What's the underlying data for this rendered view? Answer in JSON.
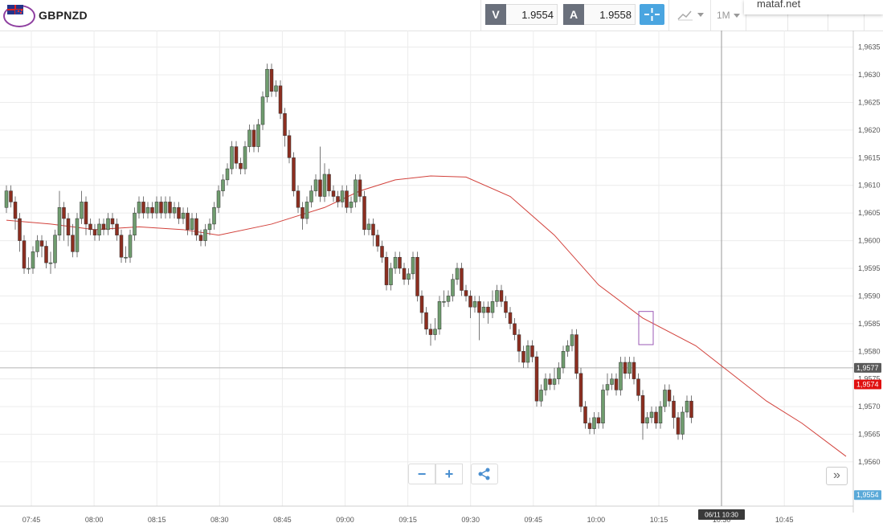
{
  "header": {
    "symbol": "GBPNZD",
    "sell_label": "V",
    "sell_price": "1.9554",
    "buy_label": "A",
    "buy_price": "1.9558",
    "timeframe": "1M",
    "overlay_text": "mataf.net"
  },
  "colors": {
    "bull": "#6f9c6e",
    "bear": "#8c2e20",
    "ma": "#d2413b",
    "price_tag": "#e01010",
    "bid_tag": "#5aa9d8",
    "crosshair_tag": "#5a5a5a",
    "accent": "#4aa5e0"
  },
  "chart_data": {
    "type": "candlestick",
    "y_range": [
      1.9552,
      1.9638
    ],
    "y_ticks": [
      "1,9560",
      "1,9565",
      "1,9570",
      "1,9575",
      "1,9580",
      "1,9585",
      "1,9590",
      "1,9595",
      "1,9600",
      "1,9605",
      "1,9610",
      "1,9615",
      "1,9620",
      "1,9625",
      "1,9630",
      "1,9635"
    ],
    "x_ticks": [
      "07:45",
      "08:00",
      "08:15",
      "08:30",
      "08:45",
      "09:00",
      "09:15",
      "09:30",
      "09:45",
      "10:00",
      "10:15",
      "10:30",
      "10:45"
    ],
    "crosshair": {
      "time": "06/11 10:30",
      "price": "1,9577"
    },
    "last_price_tag": "1,9574",
    "bid_tag": "1,9554",
    "moving_average": [
      [
        0,
        1.96037
      ],
      [
        10,
        1.9603
      ],
      [
        20,
        1.9602
      ],
      [
        30,
        1.96025
      ],
      [
        40,
        1.9602
      ],
      [
        48,
        1.9601
      ],
      [
        60,
        1.9603
      ],
      [
        72,
        1.9606
      ],
      [
        80,
        1.9609
      ],
      [
        88,
        1.9611
      ],
      [
        96,
        1.96117
      ],
      [
        104,
        1.96115
      ],
      [
        114,
        1.9608
      ],
      [
        124,
        1.9601
      ],
      [
        134,
        1.9592
      ],
      [
        144,
        1.9586
      ],
      [
        156,
        1.9581
      ],
      [
        164,
        1.9576
      ],
      [
        172,
        1.9571
      ],
      [
        180,
        1.9567
      ],
      [
        190,
        1.9561
      ]
    ],
    "candles": [
      [
        1.9606,
        1.9609,
        1.9605,
        1.961
      ],
      [
        1.9609,
        1.9607,
        1.9606,
        1.961
      ],
      [
        1.9607,
        1.9604,
        1.9602,
        1.9608
      ],
      [
        1.9604,
        1.96,
        1.9598,
        1.9605
      ],
      [
        1.96,
        1.9595,
        1.9594,
        1.9601
      ],
      [
        1.9595,
        1.9595,
        1.9594,
        1.9597
      ],
      [
        1.9595,
        1.9598,
        1.9594,
        1.9599
      ],
      [
        1.9598,
        1.96,
        1.9597,
        1.9601
      ],
      [
        1.96,
        1.9599,
        1.9597,
        1.9601
      ],
      [
        1.9599,
        1.9596,
        1.9595,
        1.96
      ],
      [
        1.9596,
        1.9596,
        1.9594,
        1.9598
      ],
      [
        1.9596,
        1.9601,
        1.9595,
        1.9602
      ],
      [
        1.9601,
        1.9606,
        1.96,
        1.9609
      ],
      [
        1.9606,
        1.9604,
        1.96,
        1.9607
      ],
      [
        1.9604,
        1.9601,
        1.9599,
        1.9605
      ],
      [
        1.9601,
        1.9598,
        1.9597,
        1.9603
      ],
      [
        1.9598,
        1.9604,
        1.9597,
        1.9605
      ],
      [
        1.9604,
        1.9607,
        1.9603,
        1.9609
      ],
      [
        1.9607,
        1.9603,
        1.9601,
        1.9608
      ],
      [
        1.9603,
        1.9602,
        1.9601,
        1.9604
      ],
      [
        1.9602,
        1.9601,
        1.96,
        1.9603
      ],
      [
        1.9601,
        1.9603,
        1.96,
        1.9604
      ],
      [
        1.9603,
        1.9602,
        1.9601,
        1.9604
      ],
      [
        1.9602,
        1.9604,
        1.9601,
        1.9605
      ],
      [
        1.9604,
        1.9603,
        1.9602,
        1.9605
      ],
      [
        1.9603,
        1.9601,
        1.96,
        1.9604
      ],
      [
        1.9601,
        1.9597,
        1.9596,
        1.9602
      ],
      [
        1.9597,
        1.9597,
        1.9596,
        1.9599
      ],
      [
        1.9597,
        1.9601,
        1.9596,
        1.9602
      ],
      [
        1.9601,
        1.9605,
        1.96,
        1.9606
      ],
      [
        1.9605,
        1.9607,
        1.9604,
        1.9608
      ],
      [
        1.9607,
        1.9605,
        1.9604,
        1.9608
      ],
      [
        1.9605,
        1.9606,
        1.9604,
        1.9607
      ],
      [
        1.9606,
        1.9605,
        1.9604,
        1.9607
      ],
      [
        1.9605,
        1.9607,
        1.9604,
        1.9608
      ],
      [
        1.9607,
        1.9605,
        1.9604,
        1.9608
      ],
      [
        1.9605,
        1.9607,
        1.9604,
        1.9608
      ],
      [
        1.9607,
        1.9605,
        1.9604,
        1.9608
      ],
      [
        1.9605,
        1.9606,
        1.9604,
        1.9607
      ],
      [
        1.9606,
        1.9604,
        1.9603,
        1.9607
      ],
      [
        1.9604,
        1.9605,
        1.9603,
        1.9606
      ],
      [
        1.9605,
        1.9602,
        1.9601,
        1.9606
      ],
      [
        1.9602,
        1.9604,
        1.9601,
        1.9605
      ],
      [
        1.9604,
        1.9601,
        1.96,
        1.9605
      ],
      [
        1.9601,
        1.96,
        1.9599,
        1.9602
      ],
      [
        1.96,
        1.9602,
        1.9599,
        1.9603
      ],
      [
        1.9602,
        1.9603,
        1.9601,
        1.9604
      ],
      [
        1.9603,
        1.9606,
        1.9602,
        1.9607
      ],
      [
        1.9606,
        1.9609,
        1.9605,
        1.961
      ],
      [
        1.9609,
        1.9611,
        1.9608,
        1.9612
      ],
      [
        1.9611,
        1.9613,
        1.961,
        1.9614
      ],
      [
        1.9613,
        1.9617,
        1.9612,
        1.9618
      ],
      [
        1.9617,
        1.9614,
        1.9613,
        1.9618
      ],
      [
        1.9614,
        1.9613,
        1.9612,
        1.9615
      ],
      [
        1.9613,
        1.9617,
        1.9612,
        1.9618
      ],
      [
        1.9617,
        1.962,
        1.9616,
        1.9621
      ],
      [
        1.962,
        1.9617,
        1.9616,
        1.9621
      ],
      [
        1.9617,
        1.9621,
        1.9616,
        1.9622
      ],
      [
        1.9621,
        1.9626,
        1.962,
        1.9627
      ],
      [
        1.9626,
        1.9631,
        1.9625,
        1.9632
      ],
      [
        1.9631,
        1.9627,
        1.9626,
        1.9632
      ],
      [
        1.9627,
        1.9628,
        1.9626,
        1.9629
      ],
      [
        1.9628,
        1.9623,
        1.9622,
        1.9629
      ],
      [
        1.9623,
        1.9619,
        1.9617,
        1.9624
      ],
      [
        1.9619,
        1.9615,
        1.9614,
        1.962
      ],
      [
        1.9615,
        1.9609,
        1.9608,
        1.9616
      ],
      [
        1.9609,
        1.9606,
        1.9605,
        1.961
      ],
      [
        1.9606,
        1.9604,
        1.9602,
        1.9607
      ],
      [
        1.9604,
        1.9607,
        1.9603,
        1.9608
      ],
      [
        1.9607,
        1.9609,
        1.9606,
        1.961
      ],
      [
        1.9609,
        1.9611,
        1.9608,
        1.9612
      ],
      [
        1.9611,
        1.9608,
        1.9607,
        1.9617
      ],
      [
        1.9608,
        1.9612,
        1.9607,
        1.9614
      ],
      [
        1.9612,
        1.9609,
        1.9608,
        1.9613
      ],
      [
        1.9609,
        1.9608,
        1.9607,
        1.961
      ],
      [
        1.9608,
        1.9607,
        1.9606,
        1.9609
      ],
      [
        1.9607,
        1.9609,
        1.9606,
        1.961
      ],
      [
        1.9609,
        1.9606,
        1.9605,
        1.961
      ],
      [
        1.9606,
        1.9607,
        1.9605,
        1.9608
      ],
      [
        1.9607,
        1.9611,
        1.9606,
        1.9612
      ],
      [
        1.9611,
        1.9608,
        1.9607,
        1.9612
      ],
      [
        1.9608,
        1.9602,
        1.9601,
        1.9609
      ],
      [
        1.9602,
        1.9603,
        1.9601,
        1.9604
      ],
      [
        1.9603,
        1.9601,
        1.9599,
        1.9604
      ],
      [
        1.9601,
        1.9599,
        1.9598,
        1.9602
      ],
      [
        1.9599,
        1.9597,
        1.9596,
        1.96
      ],
      [
        1.9597,
        1.9592,
        1.9591,
        1.9598
      ],
      [
        1.9592,
        1.9595,
        1.9591,
        1.9596
      ],
      [
        1.9595,
        1.9597,
        1.9594,
        1.9598
      ],
      [
        1.9597,
        1.9595,
        1.9594,
        1.9598
      ],
      [
        1.9595,
        1.9593,
        1.9592,
        1.9596
      ],
      [
        1.9593,
        1.9594,
        1.9592,
        1.9595
      ],
      [
        1.9594,
        1.9597,
        1.9593,
        1.9598
      ],
      [
        1.9597,
        1.959,
        1.9589,
        1.9598
      ],
      [
        1.959,
        1.9587,
        1.9585,
        1.9591
      ],
      [
        1.9587,
        1.9584,
        1.9583,
        1.9588
      ],
      [
        1.9584,
        1.9583,
        1.9581,
        1.9585
      ],
      [
        1.9583,
        1.9584,
        1.9582,
        1.9586
      ],
      [
        1.9584,
        1.9589,
        1.9583,
        1.959
      ],
      [
        1.9589,
        1.9589,
        1.9588,
        1.9591
      ],
      [
        1.9589,
        1.959,
        1.9588,
        1.9591
      ],
      [
        1.959,
        1.9593,
        1.9589,
        1.9594
      ],
      [
        1.9593,
        1.9595,
        1.9592,
        1.9596
      ],
      [
        1.9595,
        1.9591,
        1.959,
        1.9596
      ],
      [
        1.9591,
        1.959,
        1.9589,
        1.9592
      ],
      [
        1.959,
        1.9588,
        1.9586,
        1.9591
      ],
      [
        1.9588,
        1.9589,
        1.9587,
        1.959
      ],
      [
        1.9589,
        1.9587,
        1.9582,
        1.959
      ],
      [
        1.9587,
        1.9588,
        1.9586,
        1.9589
      ],
      [
        1.9588,
        1.9587,
        1.9585,
        1.9589
      ],
      [
        1.9587,
        1.9589,
        1.9586,
        1.9591
      ],
      [
        1.9589,
        1.9591,
        1.9588,
        1.9592
      ],
      [
        1.9591,
        1.9589,
        1.9588,
        1.9592
      ],
      [
        1.9589,
        1.9587,
        1.9586,
        1.959
      ],
      [
        1.9587,
        1.9585,
        1.9584,
        1.9588
      ],
      [
        1.9585,
        1.9583,
        1.9582,
        1.9586
      ],
      [
        1.9583,
        1.958,
        1.9578,
        1.9584
      ],
      [
        1.958,
        1.9578,
        1.9577,
        1.9581
      ],
      [
        1.9578,
        1.9581,
        1.9577,
        1.9582
      ],
      [
        1.9581,
        1.9579,
        1.9578,
        1.9582
      ],
      [
        1.9579,
        1.9571,
        1.957,
        1.958
      ],
      [
        1.9571,
        1.9573,
        1.957,
        1.9574
      ],
      [
        1.9573,
        1.9575,
        1.9572,
        1.9576
      ],
      [
        1.9575,
        1.9574,
        1.9573,
        1.9576
      ],
      [
        1.9574,
        1.9575,
        1.9573,
        1.9577
      ],
      [
        1.9575,
        1.9577,
        1.9574,
        1.9578
      ],
      [
        1.9577,
        1.958,
        1.9576,
        1.9581
      ],
      [
        1.958,
        1.9581,
        1.9579,
        1.9582
      ],
      [
        1.9581,
        1.9583,
        1.958,
        1.9584
      ],
      [
        1.9583,
        1.9576,
        1.9575,
        1.9584
      ],
      [
        1.9576,
        1.957,
        1.9569,
        1.9577
      ],
      [
        1.957,
        1.9567,
        1.9566,
        1.9571
      ],
      [
        1.9567,
        1.9566,
        1.9565,
        1.9568
      ],
      [
        1.9566,
        1.9568,
        1.9565,
        1.9569
      ],
      [
        1.9568,
        1.9567,
        1.9566,
        1.9569
      ],
      [
        1.9567,
        1.9573,
        1.9566,
        1.9574
      ],
      [
        1.9573,
        1.9574,
        1.9572,
        1.9576
      ],
      [
        1.9574,
        1.9575,
        1.9573,
        1.9576
      ],
      [
        1.9575,
        1.9573,
        1.9572,
        1.9576
      ],
      [
        1.9573,
        1.9578,
        1.9572,
        1.9579
      ],
      [
        1.9578,
        1.9576,
        1.9575,
        1.9579
      ],
      [
        1.9576,
        1.9578,
        1.9575,
        1.9579
      ],
      [
        1.9578,
        1.9575,
        1.9574,
        1.9579
      ],
      [
        1.9575,
        1.9572,
        1.9571,
        1.9576
      ],
      [
        1.9572,
        1.9567,
        1.9564,
        1.9573
      ],
      [
        1.9567,
        1.9568,
        1.9566,
        1.9569
      ],
      [
        1.9568,
        1.9569,
        1.9567,
        1.957
      ],
      [
        1.9569,
        1.9567,
        1.9566,
        1.957
      ],
      [
        1.9567,
        1.957,
        1.9566,
        1.9571
      ],
      [
        1.957,
        1.9573,
        1.9569,
        1.9574
      ],
      [
        1.9573,
        1.9571,
        1.957,
        1.9574
      ],
      [
        1.9571,
        1.9568,
        1.9566,
        1.9572
      ],
      [
        1.9568,
        1.9565,
        1.9564,
        1.9569
      ],
      [
        1.9565,
        1.9569,
        1.9564,
        1.957
      ],
      [
        1.9569,
        1.9571,
        1.9568,
        1.9572
      ],
      [
        1.9571,
        1.9568,
        1.9567,
        1.9572
      ]
    ]
  }
}
